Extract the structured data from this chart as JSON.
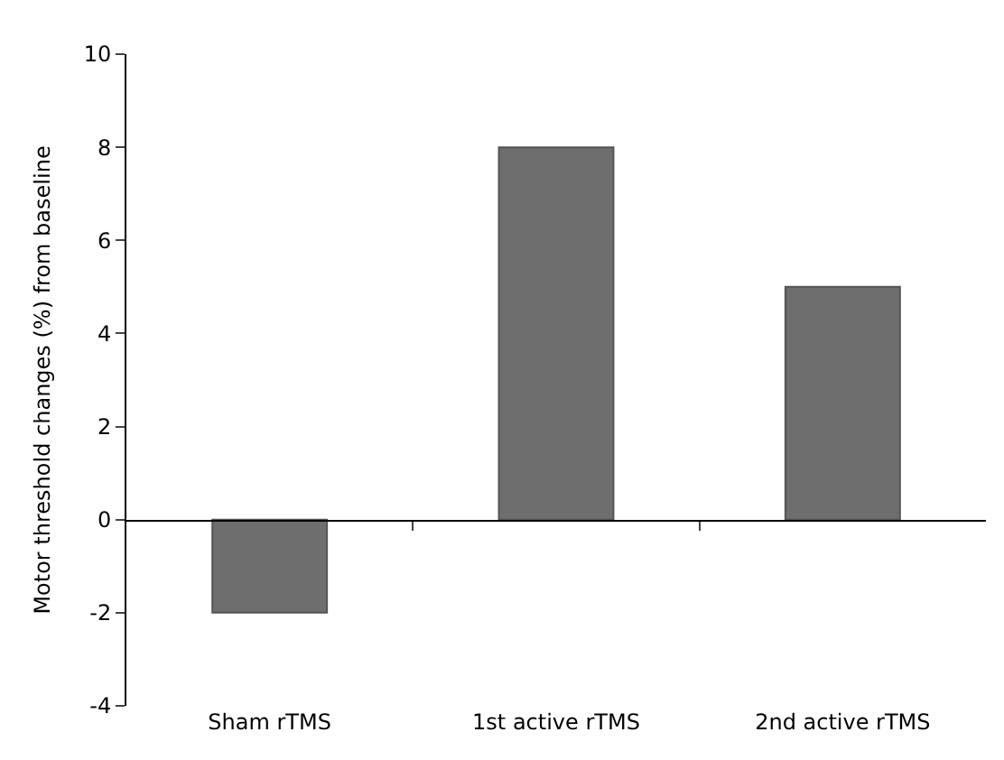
{
  "chart_data": {
    "type": "bar",
    "ylabel": "Motor threshold changes (%) from baseline",
    "categories": [
      "Sham rTMS",
      "1st active rTMS",
      "2nd active rTMS"
    ],
    "values": [
      -2,
      8,
      5
    ],
    "color": "#6e6e6e",
    "ylim": [
      -4,
      10
    ],
    "yticks": [
      -4,
      -2,
      0,
      2,
      4,
      6,
      8,
      10
    ],
    "legend": false
  }
}
